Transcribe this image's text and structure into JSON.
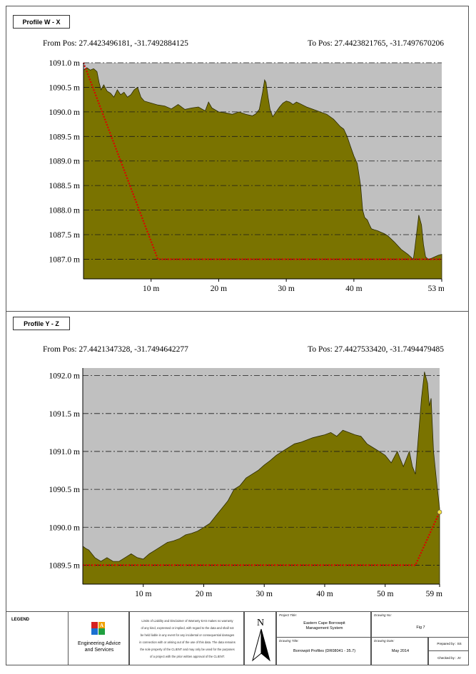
{
  "panels": [
    {
      "label": "Profile W - X",
      "from_pos": "From Pos: 27.4423496181, -31.7492884125",
      "to_pos": "To Pos: 27.4423821765, -31.7497670206"
    },
    {
      "label": "Profile Y - Z",
      "from_pos": "From Pos: 27.4421347328, -31.7494642277",
      "to_pos": "To Pos: 27.4427533420, -31.7494479485"
    }
  ],
  "chart_data": [
    {
      "type": "area",
      "title": "",
      "xlabel": "",
      "ylabel": "",
      "xlim": [
        0,
        53
      ],
      "ylim": [
        1086.6,
        1091.0
      ],
      "x_ticks": [
        10,
        20,
        30,
        40,
        53
      ],
      "x_tick_labels": [
        "10 m",
        "20 m",
        "30 m",
        "40 m",
        "53 m"
      ],
      "y_ticks": [
        1087.0,
        1087.5,
        1088.0,
        1088.5,
        1089.0,
        1089.5,
        1090.0,
        1090.5,
        1091.0
      ],
      "y_tick_labels": [
        "1087.0 m",
        "1087.5 m",
        "1088.0 m",
        "1088.5 m",
        "1089.0 m",
        "1089.5 m",
        "1090.0 m",
        "1090.5 m",
        "1091.0 m"
      ],
      "grid": true,
      "fill_color": "#7a7300",
      "background_color": "#c0c0c0",
      "profile": {
        "x": [
          0,
          0.5,
          1,
          1.5,
          2,
          2.3,
          2.6,
          3,
          3.5,
          4,
          4.5,
          5,
          5.5,
          6,
          6.5,
          7,
          7.5,
          8,
          8.5,
          9,
          10,
          11,
          12,
          13,
          14,
          15,
          16,
          17,
          18,
          18.5,
          19,
          20,
          21,
          22,
          23,
          24,
          25,
          25.5,
          26,
          26.5,
          26.8,
          27,
          27.3,
          27.6,
          28,
          28.5,
          29,
          29.5,
          30,
          30.5,
          31,
          31.5,
          32,
          33,
          34,
          35,
          36,
          37,
          38,
          38.5,
          39,
          39.5,
          40,
          40.5,
          41,
          41.3,
          41.6,
          42,
          42.3,
          42.6,
          43,
          43.5,
          44,
          44.5,
          45,
          46,
          47,
          48,
          48.8,
          49,
          49.3,
          49.6,
          50,
          50.3,
          50.6,
          51,
          51.5,
          52,
          52.5,
          53
        ],
        "y": [
          1090.85,
          1090.9,
          1090.85,
          1090.88,
          1090.82,
          1090.6,
          1090.45,
          1090.55,
          1090.42,
          1090.38,
          1090.3,
          1090.45,
          1090.35,
          1090.4,
          1090.3,
          1090.35,
          1090.45,
          1090.5,
          1090.3,
          1090.22,
          1090.18,
          1090.14,
          1090.12,
          1090.06,
          1090.15,
          1090.05,
          1090.08,
          1090.1,
          1090.02,
          1090.2,
          1090.08,
          1090.0,
          1089.98,
          1089.95,
          1090.0,
          1089.95,
          1089.92,
          1089.96,
          1090.05,
          1090.4,
          1090.65,
          1090.6,
          1090.3,
          1090.05,
          1089.9,
          1090.0,
          1090.1,
          1090.18,
          1090.22,
          1090.2,
          1090.15,
          1090.2,
          1090.17,
          1090.1,
          1090.05,
          1090.0,
          1089.95,
          1089.85,
          1089.7,
          1089.65,
          1089.5,
          1089.3,
          1089.1,
          1088.95,
          1088.5,
          1088.0,
          1087.85,
          1087.8,
          1087.7,
          1087.62,
          1087.6,
          1087.58,
          1087.55,
          1087.52,
          1087.48,
          1087.35,
          1087.2,
          1087.1,
          1087.0,
          1087.2,
          1087.55,
          1087.9,
          1087.7,
          1087.3,
          1087.05,
          1087.0,
          1087.02,
          1087.05,
          1087.08,
          1087.1
        ]
      },
      "design_line": {
        "color": "#dd0000",
        "x": [
          0,
          11,
          53
        ],
        "y": [
          1091.0,
          1087.0,
          1087.0
        ]
      }
    },
    {
      "type": "area",
      "title": "",
      "xlabel": "",
      "ylabel": "",
      "xlim": [
        0,
        59
      ],
      "ylim": [
        1089.25,
        1092.1
      ],
      "x_ticks": [
        10,
        20,
        30,
        40,
        50,
        59
      ],
      "x_tick_labels": [
        "10 m",
        "20 m",
        "30 m",
        "40 m",
        "50 m",
        "59 m"
      ],
      "y_ticks": [
        1089.5,
        1090.0,
        1090.5,
        1091.0,
        1091.5,
        1092.0
      ],
      "y_tick_labels": [
        "1089.5 m",
        "1090.0 m",
        "1090.5 m",
        "1091.0 m",
        "1091.5 m",
        "1092.0 m"
      ],
      "grid": true,
      "fill_color": "#7a7300",
      "background_color": "#c0c0c0",
      "profile": {
        "x": [
          0,
          0.5,
          1,
          1.5,
          2,
          3,
          4,
          5,
          6,
          7,
          8,
          9,
          10,
          11,
          12,
          13,
          14,
          15,
          16,
          17,
          18,
          19,
          20,
          21,
          22,
          23,
          24,
          25,
          26,
          27,
          28,
          29,
          30,
          31,
          32,
          33,
          34,
          35,
          36,
          37,
          38,
          39,
          40,
          41,
          42,
          43,
          44,
          45,
          46,
          47,
          48,
          49,
          50,
          51,
          52,
          53,
          54,
          54.5,
          55,
          55.5,
          56,
          56.5,
          57,
          57.3,
          57.6,
          58,
          58.5,
          59
        ],
        "y": [
          1089.75,
          1089.72,
          1089.7,
          1089.65,
          1089.6,
          1089.55,
          1089.6,
          1089.55,
          1089.55,
          1089.6,
          1089.65,
          1089.6,
          1089.58,
          1089.65,
          1089.7,
          1089.75,
          1089.8,
          1089.82,
          1089.85,
          1089.9,
          1089.92,
          1089.95,
          1090.0,
          1090.05,
          1090.15,
          1090.25,
          1090.35,
          1090.5,
          1090.55,
          1090.65,
          1090.7,
          1090.75,
          1090.82,
          1090.88,
          1090.95,
          1091.0,
          1091.05,
          1091.1,
          1091.12,
          1091.15,
          1091.18,
          1091.2,
          1091.22,
          1091.25,
          1091.2,
          1091.28,
          1091.25,
          1091.22,
          1091.2,
          1091.1,
          1091.05,
          1091.0,
          1090.95,
          1090.85,
          1091.0,
          1090.8,
          1091.0,
          1090.8,
          1090.7,
          1091.2,
          1091.7,
          1092.05,
          1091.9,
          1091.6,
          1091.7,
          1091.0,
          1090.6,
          1090.25
        ]
      },
      "design_line": {
        "color": "#dd0000",
        "x": [
          0,
          55,
          59
        ],
        "y": [
          1089.5,
          1089.5,
          1090.2
        ]
      }
    }
  ],
  "legend": {
    "title": "LEGEND",
    "company": "Engineering Advice and Services",
    "company_line1": "Engineering Advice",
    "company_line2": "and Services",
    "disclaimer_lines": [
      "Limits of Liability and Disclaimer of Warranty EAS makes no warranty",
      "of any kind, expressed or implied, with regard to the data and shall not",
      "be held liable in any event for any incidental or consequential damages",
      "in connection with or arising out of the use of this data. The data remains",
      "the sole property of the CLIENT and may only be used for the purposes",
      "of a project with the prior written approval of the CLIENT."
    ],
    "north_label": "N",
    "project_title_label": "Project Title:",
    "project_title_line1": "Eastern Cape Borrowpit",
    "project_title_line2": "Management System",
    "drawing_title_label": "Drawing Title:",
    "drawing_title": "Borrowpit Profiles (DR08041 - 35.7)",
    "drawing_no_label": "Drawing No:",
    "drawing_no": "Fig 7",
    "drawing_date_label": "Drawing Date:",
    "drawing_date": "May 2014",
    "prepared_by": "Prepared by : SS",
    "checked_by": "Checked by : JV"
  }
}
